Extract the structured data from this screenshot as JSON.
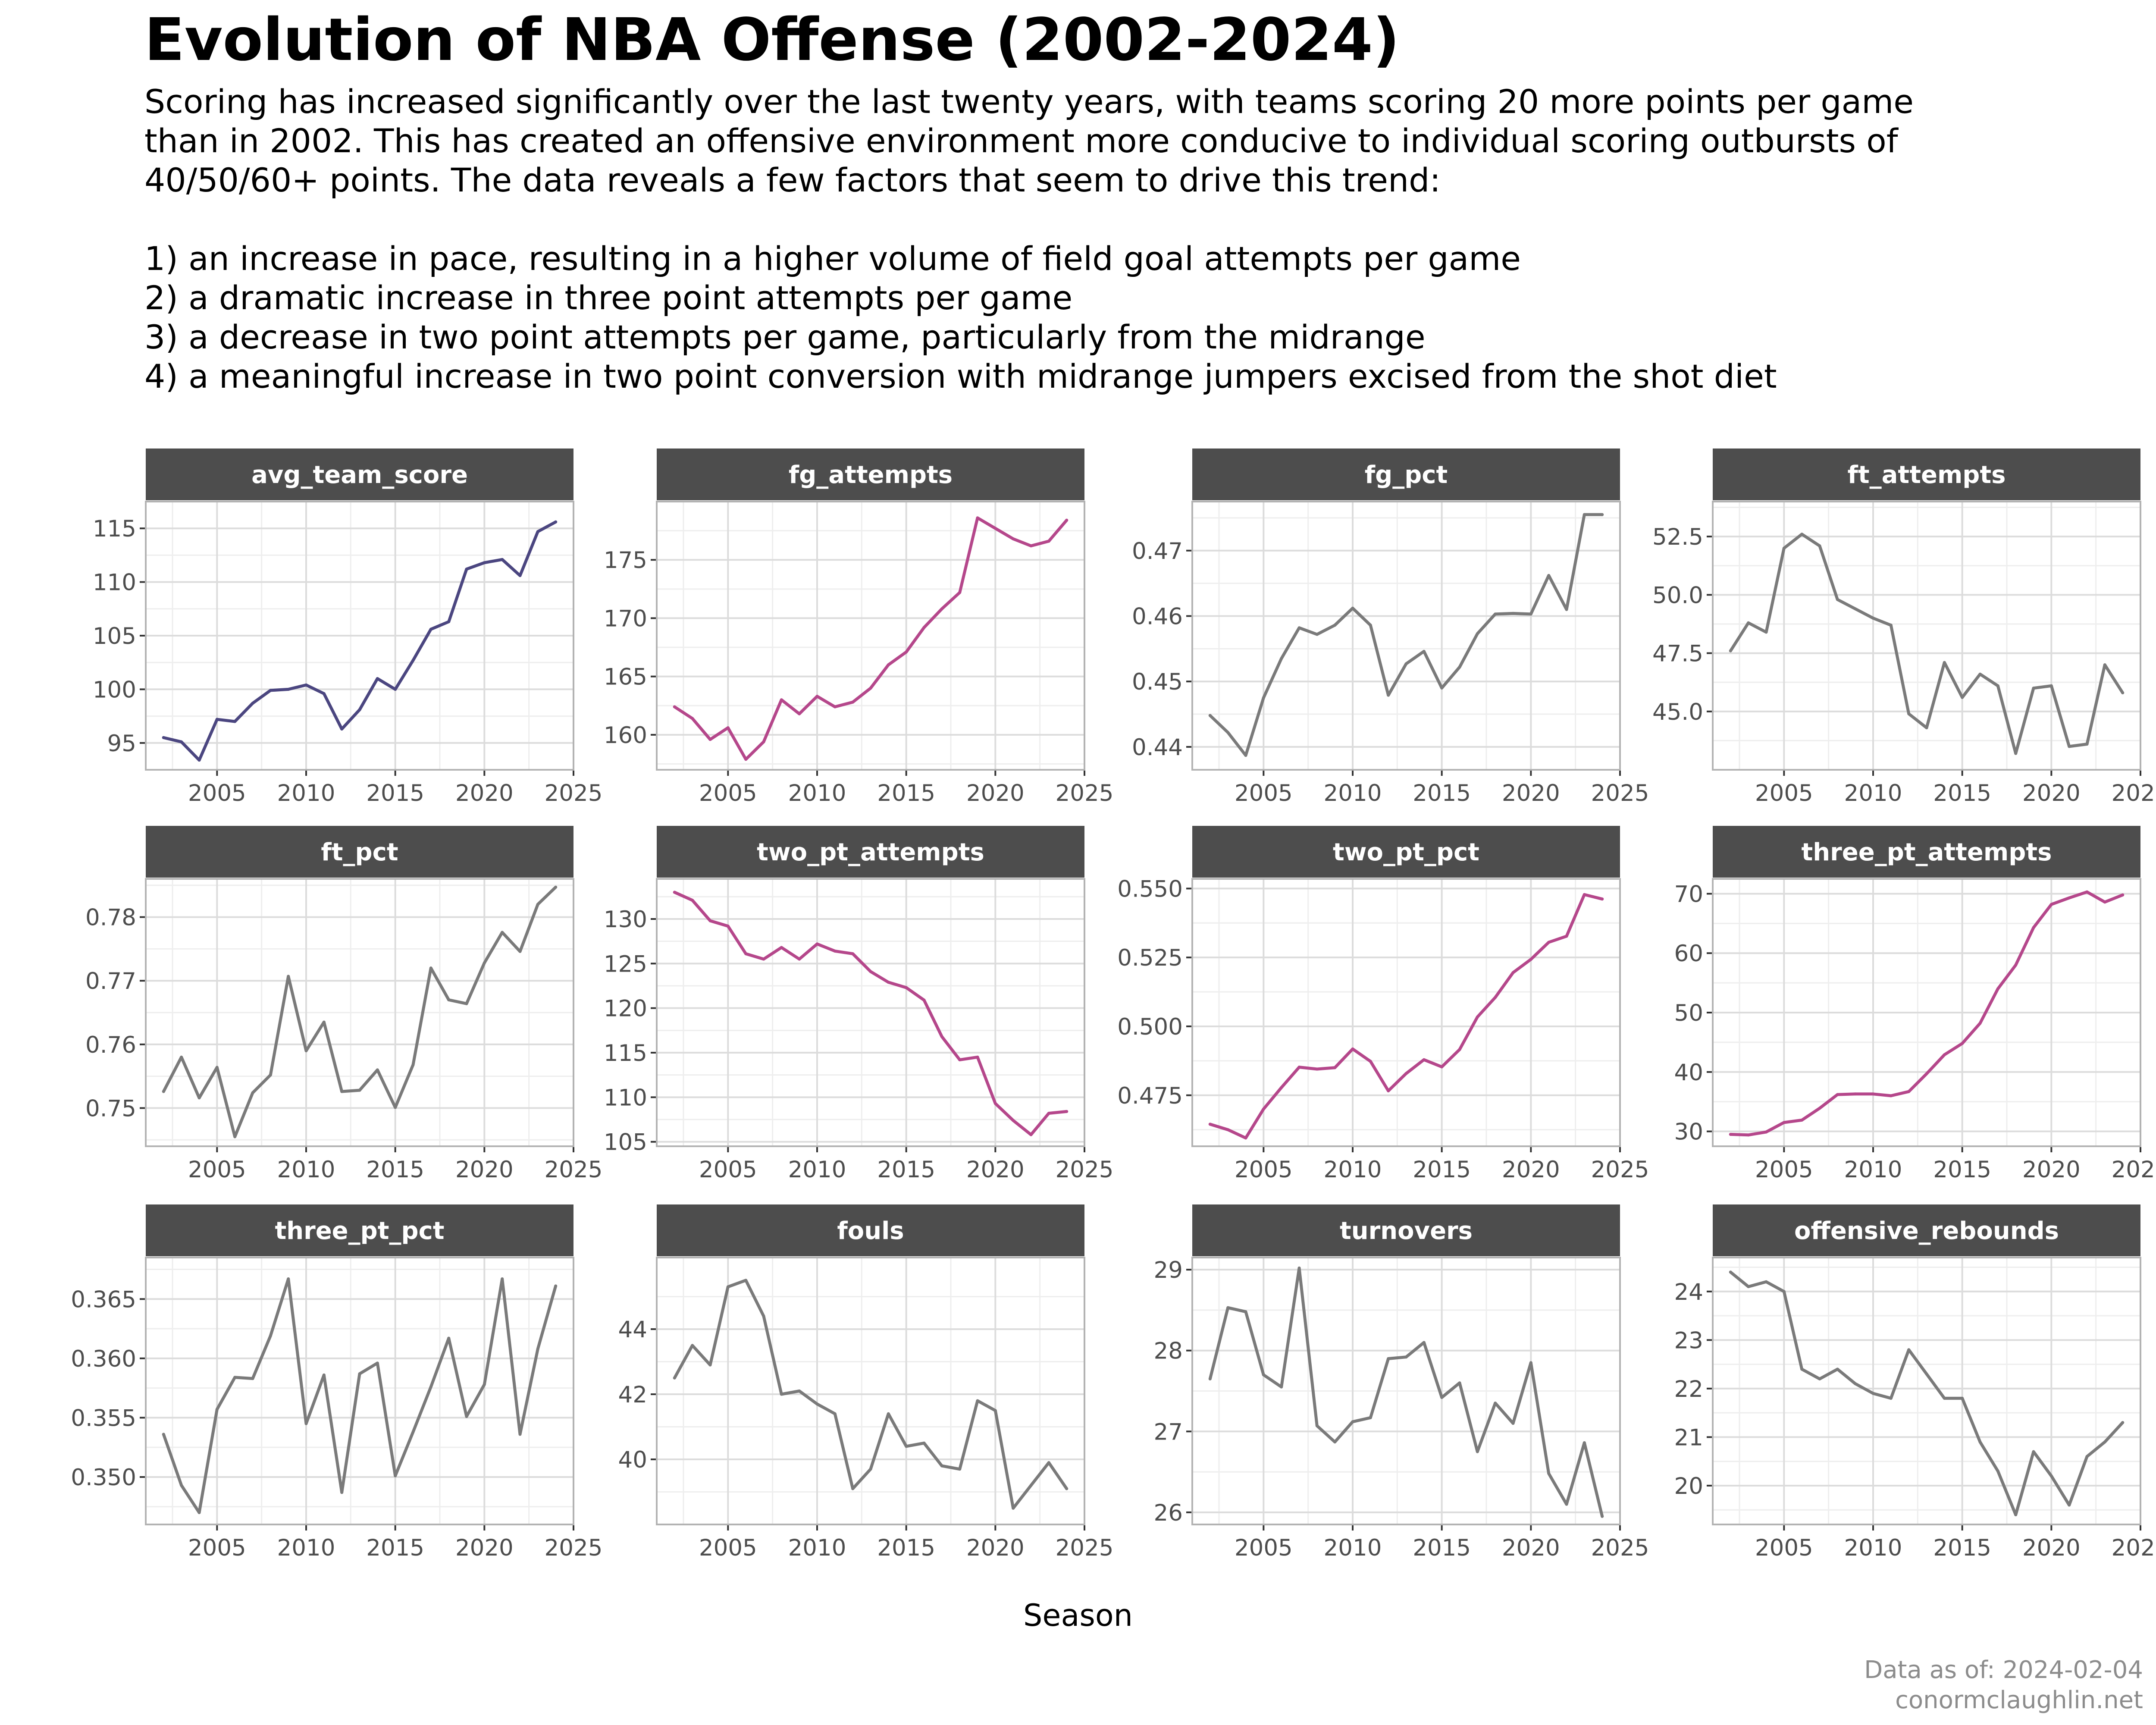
{
  "title": "Evolution of NBA Offense (2002-2024)",
  "subtitle_lines": [
    "Scoring has increased significantly over the last twenty years, with teams scoring 20 more points per game",
    "than in 2002. This has created an offensive environment more conducive to individual scoring outbursts of",
    "40/50/60+ points. The data reveals a few factors that seem to drive this trend:",
    "",
    "1) an increase in pace, resulting in a higher volume of field goal attempts per game",
    "2) a dramatic increase in three point attempts per game",
    "3) a decrease in two point attempts per game, particularly from the midrange",
    "4) a meaningful increase in two point conversion with midrange jumpers excised from the shot diet"
  ],
  "x_label": "Season",
  "caption_lines": [
    "Data as of: 2024-02-04",
    "conormclaughlin.net"
  ],
  "colors": {
    "avg_team_score": "#4b4680",
    "highlight": "#b5478b",
    "neutral": "#7a7a7a",
    "strip": "#4d4d4d",
    "strip_text": "#ffffff",
    "grid_major": "#dcdcdc",
    "grid_minor": "#eeeeee",
    "panel_border": "#b3b3b3"
  },
  "chart_data": {
    "type": "line",
    "x": [
      2002,
      2003,
      2004,
      2005,
      2006,
      2007,
      2008,
      2009,
      2010,
      2011,
      2012,
      2013,
      2014,
      2015,
      2016,
      2017,
      2018,
      2019,
      2020,
      2021,
      2022,
      2023,
      2024
    ],
    "x_range": [
      2001,
      2025
    ],
    "x_ticks": [
      "2005",
      "2010",
      "2015",
      "2020",
      "2025"
    ],
    "panels": [
      {
        "name": "avg_team_score",
        "color_key": "avg_team_score",
        "ylim": [
          92.5,
          117.5
        ],
        "y_ticks": [
          "95",
          "100",
          "105",
          "110",
          "115"
        ],
        "values": [
          95.5,
          95.1,
          93.4,
          97.2,
          97.0,
          98.7,
          99.9,
          100.0,
          100.4,
          99.6,
          96.3,
          98.1,
          101.0,
          100.0,
          102.7,
          105.6,
          106.3,
          111.2,
          111.8,
          112.1,
          110.6,
          114.7,
          115.6
        ]
      },
      {
        "name": "fg_attempts",
        "color_key": "highlight",
        "ylim": [
          157.0,
          180.0
        ],
        "y_ticks": [
          "160",
          "165",
          "170",
          "175"
        ],
        "values": [
          162.4,
          161.4,
          159.6,
          160.6,
          157.9,
          159.4,
          163.0,
          161.8,
          163.3,
          162.4,
          162.8,
          164.0,
          166.0,
          167.1,
          169.2,
          170.8,
          172.2,
          178.6,
          177.7,
          176.8,
          176.2,
          176.6,
          178.4
        ]
      },
      {
        "name": "fg_pct",
        "color_key": "neutral",
        "ylim": [
          0.4365,
          0.4775
        ],
        "y_ticks": [
          "0.44",
          "0.45",
          "0.46",
          "0.47"
        ],
        "values": [
          0.4448,
          0.4422,
          0.4387,
          0.4475,
          0.4535,
          0.4582,
          0.4572,
          0.4586,
          0.4612,
          0.4586,
          0.4479,
          0.4527,
          0.4546,
          0.449,
          0.4522,
          0.4573,
          0.4603,
          0.4604,
          0.4603,
          0.4662,
          0.461,
          0.4755,
          0.4755
        ]
      },
      {
        "name": "ft_attempts",
        "color_key": "neutral",
        "ylim": [
          42.5,
          54.0
        ],
        "y_ticks": [
          "45.0",
          "47.5",
          "50.0",
          "52.5"
        ],
        "values": [
          47.6,
          48.8,
          48.4,
          52.0,
          52.6,
          52.1,
          49.8,
          49.4,
          49.0,
          48.7,
          44.9,
          44.3,
          47.1,
          45.6,
          46.6,
          46.1,
          43.2,
          46.0,
          46.1,
          43.5,
          43.6,
          47.0,
          45.8
        ]
      },
      {
        "name": "ft_pct",
        "color_key": "neutral",
        "ylim": [
          0.744,
          0.786
        ],
        "y_ticks": [
          "0.75",
          "0.76",
          "0.77",
          "0.78"
        ],
        "values": [
          0.7526,
          0.758,
          0.7516,
          0.7564,
          0.7455,
          0.7524,
          0.7552,
          0.7707,
          0.759,
          0.7635,
          0.7526,
          0.7528,
          0.756,
          0.7501,
          0.7568,
          0.772,
          0.767,
          0.7664,
          0.7728,
          0.7776,
          0.7746,
          0.782,
          0.7847
        ]
      },
      {
        "name": "two_pt_attempts",
        "color_key": "highlight",
        "ylim": [
          104.5,
          134.5
        ],
        "y_ticks": [
          "105",
          "110",
          "115",
          "120",
          "125",
          "130"
        ],
        "values": [
          133.0,
          132.1,
          129.8,
          129.2,
          126.1,
          125.5,
          126.8,
          125.5,
          127.2,
          126.4,
          126.1,
          124.1,
          122.9,
          122.3,
          120.9,
          116.8,
          114.2,
          114.5,
          109.3,
          107.4,
          105.8,
          108.2,
          108.4
        ]
      },
      {
        "name": "two_pt_pct",
        "color_key": "highlight",
        "ylim": [
          0.4565,
          0.5535
        ],
        "y_ticks": [
          "0.475",
          "0.500",
          "0.525",
          "0.550"
        ],
        "values": [
          0.4645,
          0.4625,
          0.4595,
          0.47,
          0.4778,
          0.4852,
          0.4845,
          0.485,
          0.4918,
          0.4873,
          0.4766,
          0.4829,
          0.4879,
          0.4853,
          0.4916,
          0.5034,
          0.5105,
          0.5195,
          0.5243,
          0.5305,
          0.5327,
          0.5478,
          0.5462
        ]
      },
      {
        "name": "three_pt_attempts",
        "color_key": "highlight",
        "ylim": [
          27.5,
          72.5
        ],
        "y_ticks": [
          "30",
          "40",
          "50",
          "60",
          "70"
        ],
        "values": [
          29.5,
          29.4,
          29.9,
          31.5,
          31.9,
          33.9,
          36.2,
          36.3,
          36.3,
          36.0,
          36.7,
          39.7,
          42.9,
          44.8,
          48.2,
          54.0,
          58.0,
          64.3,
          68.2,
          69.3,
          70.3,
          68.6,
          69.8
        ]
      },
      {
        "name": "three_pt_pct",
        "color_key": "neutral",
        "ylim": [
          0.346,
          0.3685
        ],
        "y_ticks": [
          "0.350",
          "0.355",
          "0.360",
          "0.365"
        ],
        "values": [
          0.3536,
          0.3493,
          0.347,
          0.3557,
          0.3584,
          0.3583,
          0.3619,
          0.3667,
          0.3545,
          0.3586,
          0.3487,
          0.3587,
          0.3596,
          0.3501,
          0.3538,
          0.3576,
          0.3617,
          0.3551,
          0.3578,
          0.3667,
          0.3536,
          0.3608,
          0.3661
        ]
      },
      {
        "name": "fouls",
        "color_key": "neutral",
        "ylim": [
          38.0,
          46.2
        ],
        "y_ticks": [
          "40",
          "42",
          "44"
        ],
        "values": [
          42.5,
          43.5,
          42.9,
          45.3,
          45.5,
          44.4,
          42.0,
          42.1,
          41.7,
          41.4,
          39.1,
          39.7,
          41.4,
          40.4,
          40.5,
          39.8,
          39.7,
          41.8,
          41.5,
          38.5,
          39.2,
          39.9,
          39.1
        ]
      },
      {
        "name": "turnovers",
        "color_key": "neutral",
        "ylim": [
          25.85,
          29.15
        ],
        "y_ticks": [
          "26",
          "27",
          "28",
          "29"
        ],
        "values": [
          27.65,
          28.53,
          28.48,
          27.7,
          27.55,
          29.02,
          27.07,
          26.87,
          27.12,
          27.17,
          27.9,
          27.92,
          28.1,
          27.42,
          27.6,
          26.75,
          27.35,
          27.1,
          27.85,
          26.48,
          26.1,
          26.86,
          25.95
        ]
      },
      {
        "name": "offensive_rebounds",
        "color_key": "neutral",
        "ylim": [
          19.2,
          24.7
        ],
        "y_ticks": [
          "20",
          "21",
          "22",
          "23",
          "24"
        ],
        "values": [
          24.4,
          24.1,
          24.2,
          24.0,
          22.4,
          22.2,
          22.4,
          22.1,
          21.9,
          21.8,
          22.8,
          22.3,
          21.8,
          21.8,
          20.9,
          20.3,
          19.4,
          20.7,
          20.2,
          19.6,
          20.6,
          20.9,
          21.3
        ]
      }
    ]
  }
}
